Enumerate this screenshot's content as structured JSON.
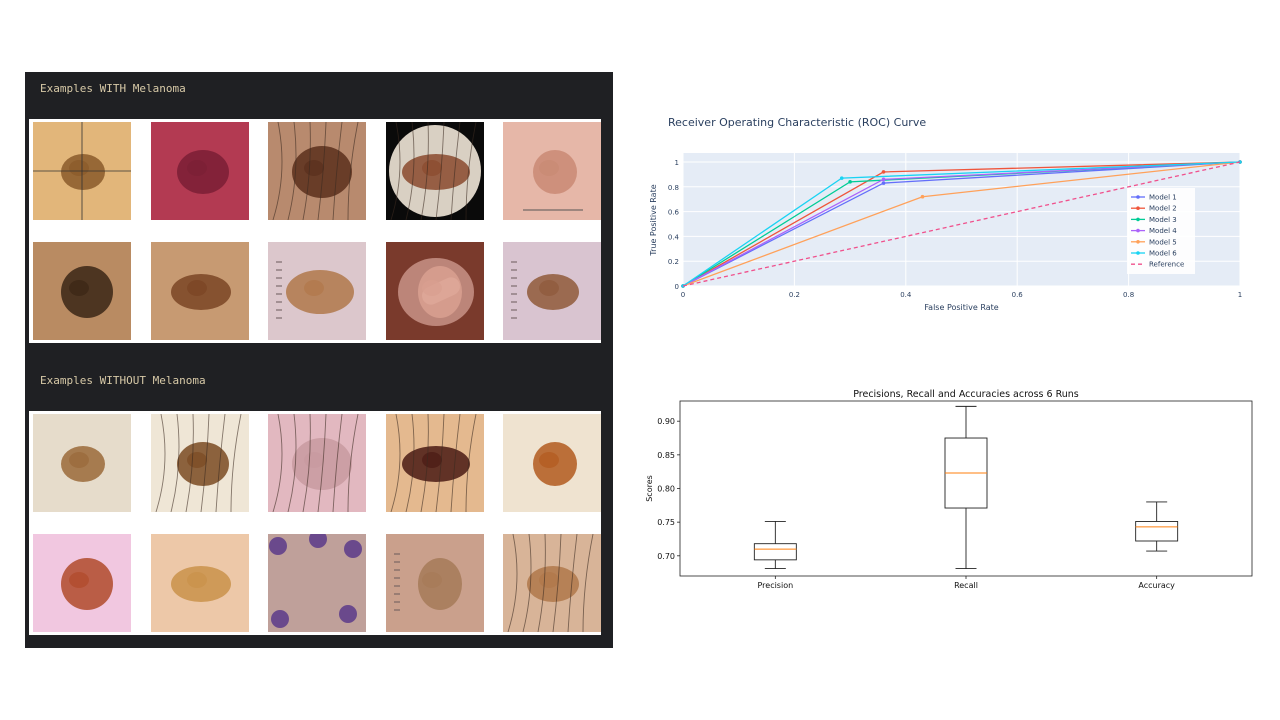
{
  "notebook": {
    "with_label": "Examples WITH Melanoma",
    "without_label": "Examples WITHOUT Melanoma"
  },
  "thumbnails_with": [
    {
      "bg": "#e2b67a",
      "lesion": "#8a5a2a",
      "hair": false,
      "crosshair": true
    },
    {
      "bg": "#b33a52",
      "lesion": "#7a1f35",
      "hair": false
    },
    {
      "bg": "#b88a6e",
      "lesion": "#5a2f1c",
      "hair": true
    },
    {
      "bg": "#0a0a0a",
      "lesion": "#8a4a2e",
      "hair": true,
      "circle": "#d9d0c3"
    },
    {
      "bg": "#e6b7a8",
      "lesion": "#c98a74",
      "hair": false,
      "scale": true
    },
    {
      "bg": "#b98b62",
      "lesion": "#3a2616",
      "hair": false
    },
    {
      "bg": "#c79a72",
      "lesion": "#7a4524",
      "hair": false
    },
    {
      "bg": "#dcc7cc",
      "lesion": "#b0784a",
      "hair": false,
      "ruler": true
    },
    {
      "bg": "#7a3a2c",
      "lesion": "#d9a090",
      "hair": false,
      "dome": true
    },
    {
      "bg": "#d9c4d0",
      "lesion": "#8f5a3a",
      "hair": false,
      "ruler": true
    }
  ],
  "thumbnails_without": [
    {
      "bg": "#e6dccb",
      "lesion": "#9a6a3a",
      "hair": false
    },
    {
      "bg": "#efe6d6",
      "lesion": "#7a4a22",
      "hair": true
    },
    {
      "bg": "#e2b8c0",
      "lesion": "#c89aa0",
      "hair": true
    },
    {
      "bg": "#e4b98f",
      "lesion": "#4a1a14",
      "hair": true
    },
    {
      "bg": "#efe3d0",
      "lesion": "#b25a1e",
      "hair": false
    },
    {
      "bg": "#f1c7e0",
      "lesion": "#b04a2a",
      "hair": false
    },
    {
      "bg": "#edc8a8",
      "lesion": "#c9924a",
      "hair": false
    },
    {
      "bg": "#bfa09a",
      "lesion": "#5a3a8a",
      "hair": false,
      "purple": true
    },
    {
      "bg": "#caa08c",
      "lesion": "#a67a58",
      "hair": false,
      "ruler": true
    },
    {
      "bg": "#d8b498",
      "lesion": "#b0784a",
      "hair": true
    }
  ],
  "chart_data": [
    {
      "type": "line",
      "title": "Receiver Operating Characteristic (ROC) Curve",
      "xlabel": "False Positive Rate",
      "ylabel": "True Positive Rate",
      "xlim": [
        0,
        1
      ],
      "ylim": [
        0,
        1
      ],
      "xticks": [
        0,
        0.2,
        0.4,
        0.6,
        0.8,
        1
      ],
      "xtick_labels": [
        "0",
        "0.2",
        "0.4",
        "0.6",
        "0.8",
        "1"
      ],
      "yticks": [
        0,
        0.2,
        0.4,
        0.6,
        0.8,
        1
      ],
      "ytick_labels": [
        "0",
        "0.2",
        "0.4",
        "0.6",
        "0.8",
        "1"
      ],
      "grid": true,
      "legend_position": "bottom-right",
      "series": [
        {
          "name": "Model 1",
          "color": "#636efa",
          "x": [
            0,
            0.36,
            1
          ],
          "y": [
            0,
            0.83,
            1
          ]
        },
        {
          "name": "Model 2",
          "color": "#ef553b",
          "x": [
            0,
            0.36,
            1
          ],
          "y": [
            0,
            0.92,
            1
          ]
        },
        {
          "name": "Model 3",
          "color": "#00cc96",
          "x": [
            0,
            0.3,
            1
          ],
          "y": [
            0,
            0.84,
            1
          ]
        },
        {
          "name": "Model 4",
          "color": "#ab63fa",
          "x": [
            0,
            0.36,
            1
          ],
          "y": [
            0,
            0.86,
            1
          ]
        },
        {
          "name": "Model 5",
          "color": "#ffa15a",
          "x": [
            0,
            0.43,
            1
          ],
          "y": [
            0,
            0.72,
            1
          ]
        },
        {
          "name": "Model 6",
          "color": "#19d3f3",
          "x": [
            0,
            0.285,
            1
          ],
          "y": [
            0,
            0.87,
            1
          ]
        },
        {
          "name": "Reference",
          "color": "#f0508c",
          "dash": true,
          "x": [
            0,
            1
          ],
          "y": [
            0,
            1
          ]
        }
      ]
    },
    {
      "type": "box",
      "title": "Precisions, Recall and Accuracies across 6 Runs",
      "xlabel": "",
      "ylabel": "Scores",
      "ylim": [
        0.67,
        0.93
      ],
      "yticks": [
        0.7,
        0.75,
        0.8,
        0.85,
        0.9
      ],
      "ytick_labels": [
        "0.70",
        "0.75",
        "0.80",
        "0.85",
        "0.90"
      ],
      "categories": [
        "Precision",
        "Recall",
        "Accuracy"
      ],
      "boxes": [
        {
          "min": 0.681,
          "q1": 0.694,
          "median": 0.71,
          "q3": 0.718,
          "max": 0.751
        },
        {
          "min": 0.681,
          "q1": 0.771,
          "median": 0.823,
          "q3": 0.875,
          "max": 0.922
        },
        {
          "min": 0.707,
          "q1": 0.722,
          "median": 0.743,
          "q3": 0.751,
          "max": 0.78
        }
      ],
      "median_color": "#ff7f0e"
    }
  ]
}
